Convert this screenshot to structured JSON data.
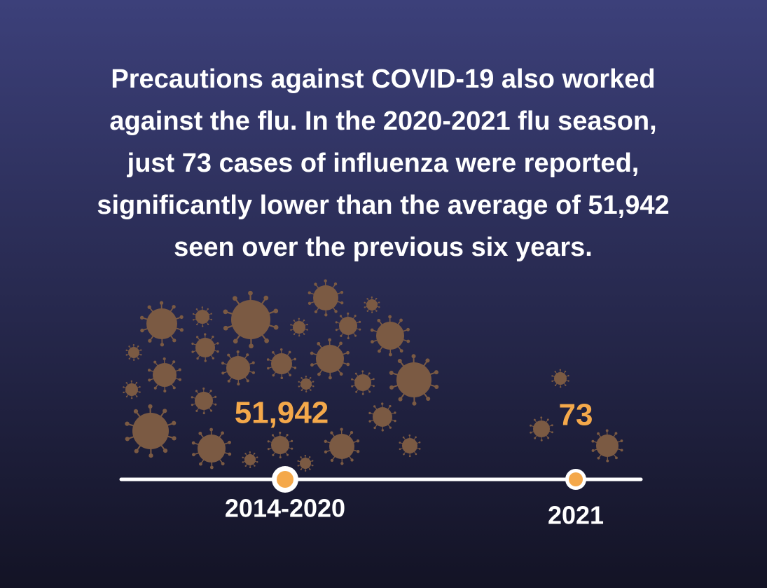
{
  "headline": [
    "Precautions against COVID-19 also worked",
    "against the flu. In the 2020-2021 flu season,",
    "just 73 cases of influenza were reported,",
    "significantly lower than the average of 51,942",
    "seen over the previous six years."
  ],
  "timeline": [
    {
      "value": "51,942",
      "label": "2014-2020"
    },
    {
      "value": "73",
      "label": "2021"
    }
  ]
}
